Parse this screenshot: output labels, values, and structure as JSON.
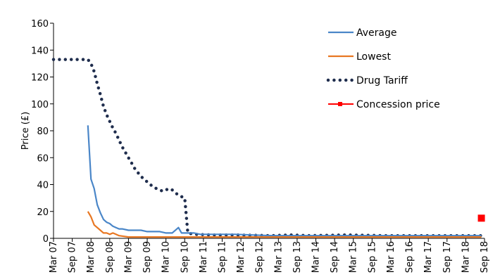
{
  "chart_data": {
    "type": "line",
    "ylabel": "Price (£)",
    "ylim": [
      0,
      160
    ],
    "yticks": [
      0,
      20,
      40,
      60,
      80,
      100,
      120,
      140,
      160
    ],
    "x_start": "Mar 07",
    "x_end": "Sep 18",
    "x_tick_labels": [
      "Mar 07",
      "Sep 07",
      "Mar 08",
      "Sep 08",
      "Mar 09",
      "Sep 09",
      "Mar 10",
      "Sep 10",
      "Mar 11",
      "Sep 11",
      "Mar 12",
      "Sep 12",
      "Mar 13",
      "Sep 13",
      "Mar 14",
      "Sep 14",
      "Mar 15",
      "Sep 15",
      "Mar 16",
      "Sep 16",
      "Mar 17",
      "Sep 17",
      "Mar 18",
      "Sep 18"
    ],
    "grid": false,
    "legend_position": "top-right",
    "series": [
      {
        "name": "Average",
        "color": "#4a86c8",
        "style": "solid",
        "points": [
          [
            "Feb 08",
            84
          ],
          [
            "Mar 08",
            44
          ],
          [
            "Apr 08",
            37
          ],
          [
            "May 08",
            25
          ],
          [
            "Jun 08",
            19
          ],
          [
            "Jul 08",
            14
          ],
          [
            "Aug 08",
            12
          ],
          [
            "Sep 08",
            11
          ],
          [
            "Oct 08",
            9
          ],
          [
            "Nov 08",
            8
          ],
          [
            "Dec 08",
            7
          ],
          [
            "Jan 09",
            7
          ],
          [
            "Mar 09",
            6
          ],
          [
            "May 09",
            6
          ],
          [
            "Jul 09",
            6
          ],
          [
            "Sep 09",
            5
          ],
          [
            "Nov 09",
            5
          ],
          [
            "Jan 10",
            5
          ],
          [
            "Mar 10",
            4
          ],
          [
            "May 10",
            4
          ],
          [
            "Jul 10",
            8
          ],
          [
            "Aug 10",
            4
          ],
          [
            "Oct 10",
            4
          ],
          [
            "Dec 10",
            4
          ],
          [
            "Feb 11",
            3
          ],
          [
            "Jun 11",
            3
          ],
          [
            "Jan 12",
            3
          ],
          [
            "Jan 13",
            2
          ],
          [
            "Jan 14",
            2
          ],
          [
            "Jan 15",
            2
          ],
          [
            "Jan 16",
            2
          ],
          [
            "Jan 17",
            2
          ],
          [
            "Jan 18",
            2
          ],
          [
            "Aug 18",
            2
          ]
        ]
      },
      {
        "name": "Lowest",
        "color": "#e87722",
        "style": "solid",
        "points": [
          [
            "Feb 08",
            20
          ],
          [
            "Mar 08",
            16
          ],
          [
            "Apr 08",
            10
          ],
          [
            "May 08",
            8
          ],
          [
            "Jun 08",
            6
          ],
          [
            "Jul 08",
            4
          ],
          [
            "Aug 08",
            4
          ],
          [
            "Sep 08",
            3
          ],
          [
            "Oct 08",
            4
          ],
          [
            "Nov 08",
            3
          ],
          [
            "Dec 08",
            2
          ],
          [
            "Mar 09",
            1
          ],
          [
            "Jun 09",
            1
          ],
          [
            "Sep 09",
            1
          ],
          [
            "Jan 10",
            1
          ],
          [
            "Jun 10",
            1
          ],
          [
            "Jan 11",
            1
          ],
          [
            "Jan 12",
            1
          ],
          [
            "Jan 13",
            1
          ],
          [
            "Jan 14",
            1
          ],
          [
            "Jan 15",
            1
          ],
          [
            "Jan 16",
            1
          ],
          [
            "Jan 17",
            1
          ],
          [
            "Jan 18",
            1
          ],
          [
            "Aug 18",
            1
          ]
        ]
      },
      {
        "name": "Drug Tariff",
        "color": "#1f2d4d",
        "style": "dotted",
        "points": [
          [
            "Mar 07",
            133
          ],
          [
            "Jan 08",
            133
          ],
          [
            "Feb 08",
            133
          ],
          [
            "Mar 08",
            130
          ],
          [
            "Apr 08",
            124
          ],
          [
            "May 08",
            115
          ],
          [
            "Jun 08",
            107
          ],
          [
            "Jul 08",
            98
          ],
          [
            "Aug 08",
            92
          ],
          [
            "Sep 08",
            87
          ],
          [
            "Oct 08",
            82
          ],
          [
            "Nov 08",
            78
          ],
          [
            "Dec 08",
            73
          ],
          [
            "Jan 09",
            68
          ],
          [
            "Feb 09",
            64
          ],
          [
            "Mar 09",
            60
          ],
          [
            "Apr 09",
            56
          ],
          [
            "May 09",
            52
          ],
          [
            "Jun 09",
            49
          ],
          [
            "Jul 09",
            46
          ],
          [
            "Aug 09",
            44
          ],
          [
            "Sep 09",
            42
          ],
          [
            "Oct 09",
            40
          ],
          [
            "Nov 09",
            38
          ],
          [
            "Dec 09",
            37
          ],
          [
            "Jan 10",
            36
          ],
          [
            "Feb 10",
            35
          ],
          [
            "Mar 10",
            36
          ],
          [
            "Apr 10",
            37
          ],
          [
            "May 10",
            36
          ],
          [
            "Jun 10",
            34
          ],
          [
            "Jul 10",
            32
          ],
          [
            "Aug 10",
            31
          ],
          [
            "Sep 10",
            30
          ],
          [
            "Oct 10",
            4
          ],
          [
            "Dec 10",
            3
          ],
          [
            "Jun 11",
            2.5
          ],
          [
            "Jan 12",
            2.5
          ],
          [
            "Jan 13",
            2
          ],
          [
            "Jul 13",
            2.5
          ],
          [
            "Jan 14",
            2
          ],
          [
            "Jan 15",
            2.5
          ],
          [
            "Jan 16",
            2
          ],
          [
            "Jan 17",
            2
          ],
          [
            "Jan 18",
            2
          ],
          [
            "Aug 18",
            2
          ]
        ]
      },
      {
        "name": "Concession price",
        "color": "#ff0000",
        "style": "marker",
        "points": [
          [
            "Aug 18",
            15
          ]
        ]
      }
    ]
  }
}
